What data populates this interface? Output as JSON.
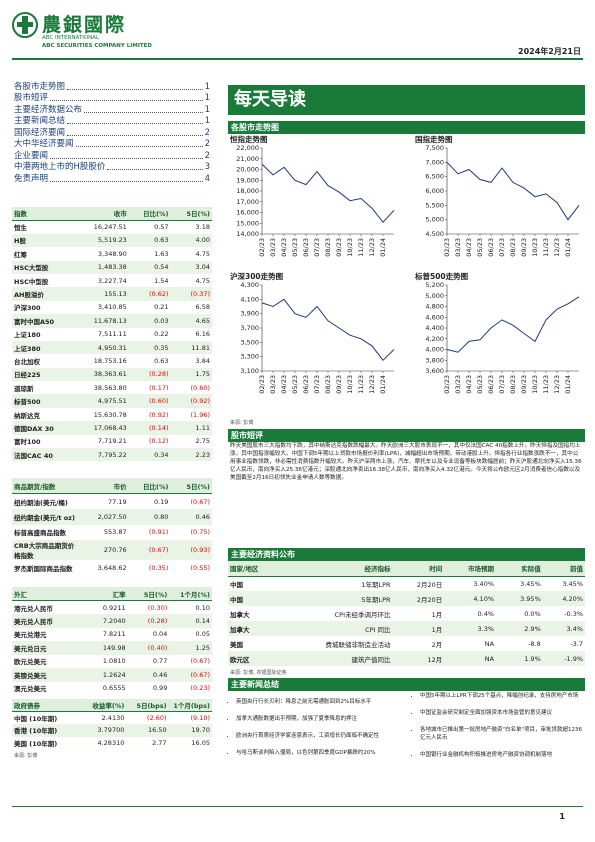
{
  "header": {
    "logo_cn": "農銀國際",
    "logo_en1": "ABC INTERNATIONAL",
    "logo_en2": "ABC SECURITIES COMPANY LIMITED",
    "date": "2024年2月21日"
  },
  "toc": [
    {
      "title": "各股市走势图",
      "page": 1
    },
    {
      "title": "股市短评",
      "page": 1
    },
    {
      "title": "主要经济数据公布",
      "page": 1
    },
    {
      "title": "主要新闻总结",
      "page": 1
    },
    {
      "title": "国际经济要闻",
      "page": 2
    },
    {
      "title": "大中华经济要闻",
      "page": 2
    },
    {
      "title": "企业要闻",
      "page": 2
    },
    {
      "title": "中港两地上市的H股股价",
      "page": 3
    },
    {
      "title": "免责声明",
      "page": 4
    }
  ],
  "index_table": {
    "header": [
      "指数",
      "收市",
      "日比(%)",
      "5日(%)"
    ],
    "rows": [
      [
        "恒生",
        "16,247.51",
        "0.57",
        "3.18"
      ],
      [
        "H股",
        "5,519.23",
        "0.63",
        "4.00"
      ],
      [
        "红筹",
        "3,348.90",
        "1.63",
        "4.75"
      ],
      [
        "HSC大型股",
        "1,483.38",
        "0.54",
        "3.04"
      ],
      [
        "HSC中型股",
        "3,227.74",
        "1.54",
        "4.75"
      ],
      [
        "AH股溢价",
        "155.13",
        "(0.62)",
        "(0.37)"
      ],
      [
        "沪深300",
        "3,410.85",
        "0.21",
        "6.58"
      ],
      [
        "富时中国A50",
        "11,678.13",
        "0.03",
        "4.65"
      ],
      [
        "上证180",
        "7,511.11",
        "0.22",
        "6.16"
      ],
      [
        "上证380",
        "4,950.31",
        "0.35",
        "11.81"
      ],
      [
        "台北加权",
        "18,753.16",
        "0.63",
        "3.84"
      ],
      [
        "日经225",
        "38,363.61",
        "(0.28)",
        "1.75"
      ],
      [
        "道琼斯",
        "38,563.80",
        "(0.17)",
        "(0.60)"
      ],
      [
        "标普500",
        "4,975.51",
        "(0.60)",
        "(0.92)"
      ],
      [
        "纳斯达克",
        "15,630.78",
        "(0.92)",
        "(1.96)"
      ],
      [
        "德国DAX 30",
        "17,068.43",
        "(0.14)",
        "1.11"
      ],
      [
        "富时100",
        "7,719.21",
        "(0.12)",
        "2.75"
      ],
      [
        "法国CAC 40",
        "7,795.22",
        "0.34",
        "2.23"
      ]
    ]
  },
  "commodity_table": {
    "header": [
      "商品期货/指数",
      "市价",
      "日比(%)",
      "5日(%)"
    ],
    "rows": [
      [
        "纽约期油(美元/桶)",
        "77.19",
        "0.19",
        "(0.67)"
      ],
      [
        "纽约期金(美元/t oz)",
        "2,027.50",
        "0.80",
        "0.46"
      ],
      [
        "标普高盛商品指数",
        "553.87",
        "(0.91)",
        "(0.75)"
      ],
      [
        "CRB大宗商品期货价格指数",
        "270.76",
        "(0.67)",
        "(0.93)"
      ],
      [
        "罗杰斯国际商品指数",
        "3,648.62",
        "(0.35)",
        "(0.55)"
      ]
    ]
  },
  "fx_table": {
    "header": [
      "外汇",
      "汇率",
      "5日(%)",
      "1个月(%)"
    ],
    "rows": [
      [
        "港元兑人民币",
        "0.9211",
        "(0.30)",
        "0.10"
      ],
      [
        "美元兑人民币",
        "7.2040",
        "(0.28)",
        "0.14"
      ],
      [
        "美元兑港元",
        "7.8211",
        "0.04",
        "0.05"
      ],
      [
        "美元兑日元",
        "149.98",
        "(0.40)",
        "1.25"
      ],
      [
        "欧元兑美元",
        "1.0810",
        "0.77",
        "(0.67)"
      ],
      [
        "英镑兑美元",
        "1.2624",
        "0.46",
        "(0.67)"
      ],
      [
        "澳元兑美元",
        "0.6555",
        "0.99",
        "(0.23)"
      ]
    ]
  },
  "bond_table": {
    "header": [
      "政府债券",
      "收益率(%)",
      "5日(bps)",
      "1个月(bps)"
    ],
    "rows": [
      [
        "中国 (10年期)",
        "2.4130",
        "(2.60)",
        "(9.10)"
      ],
      [
        "香港 (10年期)",
        "3.79700",
        "16.50",
        "19.70"
      ],
      [
        "美国 (10年期)",
        "4.28310",
        "2.77",
        "16.05"
      ]
    ]
  },
  "left_source": "来源: 彭博",
  "banner": "每天导读",
  "charts_section": "各股市走势图",
  "charts": [
    {
      "type": "line",
      "title": "恒指走势图",
      "color": "#1f3a7a",
      "categories": [
        "02/23",
        "03/23",
        "04/23",
        "05/23",
        "06/23",
        "07/23",
        "08/23",
        "09/23",
        "10/23",
        "11/23",
        "12/23",
        "01/24",
        null
      ],
      "values": [
        20500,
        19500,
        20200,
        19000,
        18600,
        19800,
        18500,
        17900,
        17100,
        17300,
        16400,
        15100,
        16200
      ],
      "ylim": [
        14000,
        22000
      ],
      "yticks": [
        {
          "value": 14000,
          "label": "14,000"
        },
        {
          "value": 15000,
          "label": "15,000"
        },
        {
          "value": 16000,
          "label": "16,000"
        },
        {
          "value": 17000,
          "label": "17,000"
        },
        {
          "value": 18000,
          "label": "18,000"
        },
        {
          "value": 19000,
          "label": "19,000"
        },
        {
          "value": 20000,
          "label": "20,000"
        },
        {
          "value": 21000,
          "label": "21,000"
        },
        {
          "value": 22000,
          "label": "22,000"
        }
      ]
    },
    {
      "type": "line",
      "title": "国指走势图",
      "color": "#1f3a7a",
      "categories": [
        "02/23",
        "03/23",
        "04/23",
        "05/23",
        "06/23",
        "07/23",
        "08/23",
        "09/23",
        "10/23",
        "11/23",
        "12/23",
        "01/24",
        null
      ],
      "values": [
        7000,
        6600,
        6750,
        6400,
        6300,
        6800,
        6300,
        6100,
        5800,
        5900,
        5600,
        5000,
        5500
      ],
      "ylim": [
        4500,
        7500
      ],
      "yticks": [
        {
          "value": 4500,
          "label": "4,500"
        },
        {
          "value": 5000,
          "label": "5,000"
        },
        {
          "value": 5500,
          "label": "5,500"
        },
        {
          "value": 6000,
          "label": "6,000"
        },
        {
          "value": 6500,
          "label": "6,500"
        },
        {
          "value": 7000,
          "label": "7,000"
        },
        {
          "value": 7500,
          "label": "7,500"
        }
      ]
    },
    {
      "type": "line",
      "title": "沪深300走势图",
      "color": "#1f3a7a",
      "categories": [
        "02/23",
        "03/23",
        "04/23",
        "05/23",
        "06/23",
        "07/23",
        "08/23",
        "09/23",
        "10/23",
        "11/23",
        "12/23",
        "01/24",
        null
      ],
      "values": [
        4050,
        4000,
        4100,
        3900,
        3850,
        4000,
        3800,
        3700,
        3600,
        3550,
        3450,
        3250,
        3400
      ],
      "ylim": [
        3100,
        4300
      ],
      "yticks": [
        {
          "value": 3100,
          "label": "3,100"
        },
        {
          "value": 3300,
          "label": "3,300"
        },
        {
          "value": 3500,
          "label": "3,500"
        },
        {
          "value": 3700,
          "label": "3,700"
        },
        {
          "value": 3900,
          "label": "3,900"
        },
        {
          "value": 4100,
          "label": "4,100"
        },
        {
          "value": 4300,
          "label": "4,300"
        }
      ]
    },
    {
      "type": "line",
      "title": "标普500走势图",
      "color": "#1f3a7a",
      "categories": [
        "02/23",
        "03/23",
        "04/23",
        "05/23",
        "06/23",
        "07/23",
        "08/23",
        "09/23",
        "10/23",
        "11/23",
        "12/23",
        "01/24",
        null
      ],
      "values": [
        4000,
        3950,
        4150,
        4180,
        4400,
        4550,
        4450,
        4300,
        4150,
        4550,
        4750,
        4850,
        4980
      ],
      "ylim": [
        3600,
        5200
      ],
      "yticks": [
        {
          "value": 3600,
          "label": "3,600"
        },
        {
          "value": 3800,
          "label": "3,800"
        },
        {
          "value": 4000,
          "label": "4,000"
        },
        {
          "value": 4200,
          "label": "4,200"
        },
        {
          "value": 4400,
          "label": "4,400"
        },
        {
          "value": 4600,
          "label": "4,600"
        },
        {
          "value": 4800,
          "label": "4,800"
        },
        {
          "value": 5000,
          "label": "5,000"
        },
        {
          "value": 5200,
          "label": "5,200"
        }
      ]
    }
  ],
  "charts_source": "来源: 彭博",
  "commentary": {
    "heading": "股市短评",
    "text": "昨天美国股市三大指数均下跌，其中纳斯达克指数跌幅最大。昨天欧洲三大股市表现不一，其中仅法国CAC 40指数上升。昨天恒指及国指均上涨，其中国指涨幅较大。中国下调5年期以上贷款市场报价利率(LPR)，减幅超出市场预期，带动港股上升。恒指各行业指数涨跌不一，其中公用事业指数领跌，非必需性消费指数升幅较大。昨天沪深两市上涨，汽车、摩托车以及专业设备等板块跌幅居前；昨天沪股通北向净买入15.36亿人民币，南向净买入25.36亿港元；深股通北向净卖出16.38亿人民币，南向净买入4.32亿港元。今天将公布欧元区2月消费者信心指数以及美国截至2月16日初领失业金申请人数等数据。"
  },
  "econ": {
    "heading": "主要经济资料公布",
    "header": [
      "国家/地区",
      "经济指标",
      "时间",
      "市场预期",
      "实际值",
      "前值"
    ],
    "rows": [
      [
        "中国",
        "1年期LPR",
        "2月20日",
        "3.40%",
        "3.45%",
        "3.45%"
      ],
      [
        "中国",
        "5年期LPR",
        "2月20日",
        "4.10%",
        "3.95%",
        "4.20%"
      ],
      [
        "加拿大",
        "CPI未经季调月环比",
        "1月",
        "0.4%",
        "0.0%",
        "-0.3%"
      ],
      [
        "加拿大",
        "CPI 同比",
        "1月",
        "3.3%",
        "2.9%",
        "3.4%"
      ],
      [
        "美国",
        "费城联储非制造业活动",
        "2月",
        "NA",
        "-8.8",
        "-3.7"
      ],
      [
        "欧元区",
        "建筑产值同比",
        "12月",
        "NA",
        "1.9%",
        "-1.9%"
      ]
    ],
    "source": "来源: 彭博, 农银国际证券"
  },
  "news": {
    "heading": "主要新闻总结",
    "left": [
      "英国央行行长贝利：降息之前无需通胀回到2%目标水平",
      "加拿大通胀数据出乎预期，加强了夏季降息的押注",
      "欧洲央行首席经济学家连恩表示，工资增长仍面临不确定性",
      "与哈马斯谈判陷入僵局，以色列第四季度GDP暴跌约20%"
    ],
    "right": [
      "中国5年期以上LPR下调25个基点，降幅创纪录，支持房地产市场",
      "中国证监会研究制定全面加强资本市场监管的意见建议",
      "各地城市已推出第一批房地产融资\"白名单\"项目，审批贷款超1236亿元人民币",
      "中国银行业金融机构积极推进房地产融资协调机制落地"
    ]
  },
  "page_number": 1
}
